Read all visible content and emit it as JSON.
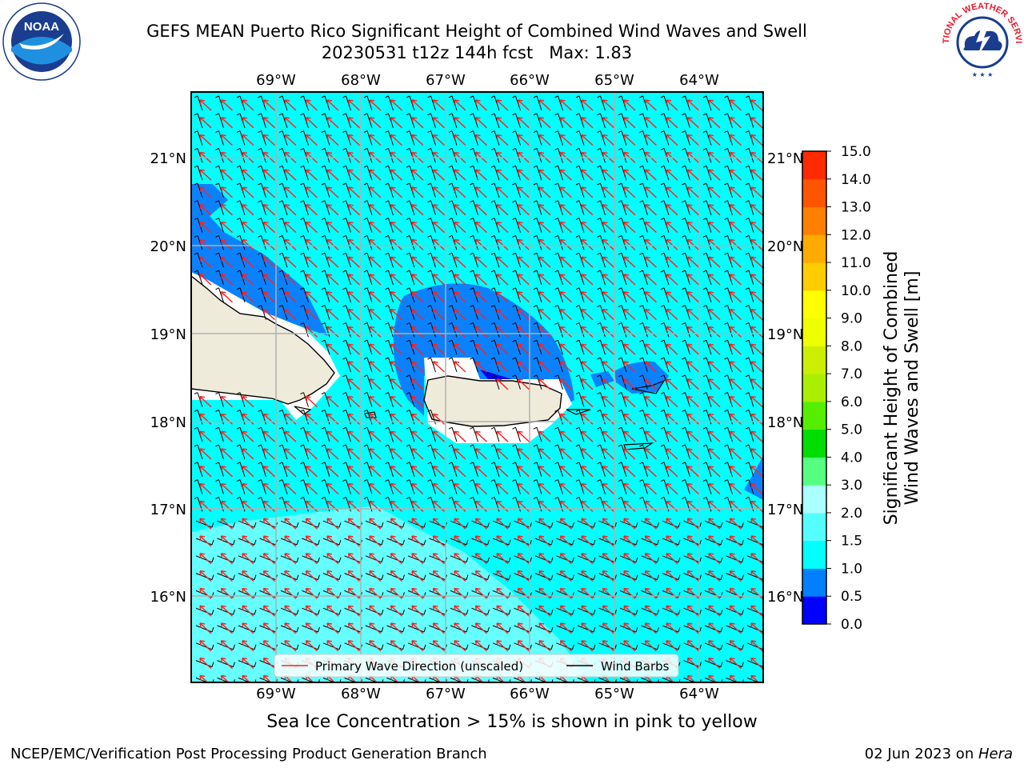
{
  "header": {
    "title_line1": "GEFS MEAN Puerto Rico Significant Height of Combined Wind Waves and Swell",
    "title_line2": "20230531 t12z 144h fcst   Max: 1.83"
  },
  "logos": {
    "left": {
      "name": "noaa-logo",
      "text": "NOAA"
    },
    "right": {
      "name": "national-weather-service-logo",
      "text": "NATIONAL WEATHER SERVICE"
    }
  },
  "map": {
    "lon_labels": [
      "69°W",
      "68°W",
      "67°W",
      "66°W",
      "65°W",
      "64°W"
    ],
    "lat_labels": [
      "21°N",
      "20°N",
      "19°N",
      "18°N",
      "17°N",
      "16°N"
    ],
    "ocean_color": "#00ffff",
    "land_color": "#efebdb",
    "arrow_color": "#ff2020",
    "barb_color": "#000000"
  },
  "legend": {
    "items": [
      {
        "label": "Primary Wave Direction (unscaled)",
        "color": "#ff2020"
      },
      {
        "label": "Wind Barbs",
        "color": "#000000"
      }
    ]
  },
  "colorbar": {
    "label_line1": "Significant Height of Combined",
    "label_line2": "Wind Waves and Swell [m]",
    "ticks": [
      "0.0",
      "0.5",
      "1.0",
      "1.5",
      "2.0",
      "3.0",
      "4.0",
      "5.0",
      "6.0",
      "7.0",
      "8.0",
      "9.0",
      "10.0",
      "11.0",
      "12.0",
      "13.0",
      "14.0",
      "15.0"
    ],
    "colors": [
      "#0000ff",
      "#0080ff",
      "#00ffff",
      "#55ffff",
      "#aaffff",
      "#55ff80",
      "#00dd00",
      "#55ee00",
      "#aaee00",
      "#ccee00",
      "#eeff00",
      "#ffff00",
      "#ffcc00",
      "#ffaa00",
      "#ff8000",
      "#ff5500",
      "#ff2a00"
    ]
  },
  "caption": "Sea Ice Concentration > 15% is shown in pink to yellow",
  "footer": {
    "left": "NCEP/EMC/Verification Post Processing Product Generation Branch",
    "right_prefix": "02 Jun 2023 on ",
    "right_host": "Hera"
  },
  "chart_data": {
    "type": "heatmap",
    "title": "GEFS MEAN Puerto Rico Significant Height of Combined Wind Waves and Swell",
    "subtitle": "20230531 t12z 144h fcst   Max: 1.83",
    "max_value": 1.83,
    "units": "m",
    "colorbar_levels": [
      0.0,
      0.5,
      1.0,
      1.5,
      2.0,
      3.0,
      4.0,
      5.0,
      6.0,
      7.0,
      8.0,
      9.0,
      10.0,
      11.0,
      12.0,
      13.0,
      14.0,
      15.0
    ],
    "lon_range": [
      "69°W",
      "64°W"
    ],
    "lat_range": [
      "16°N",
      "21°N"
    ],
    "grid": true
  }
}
